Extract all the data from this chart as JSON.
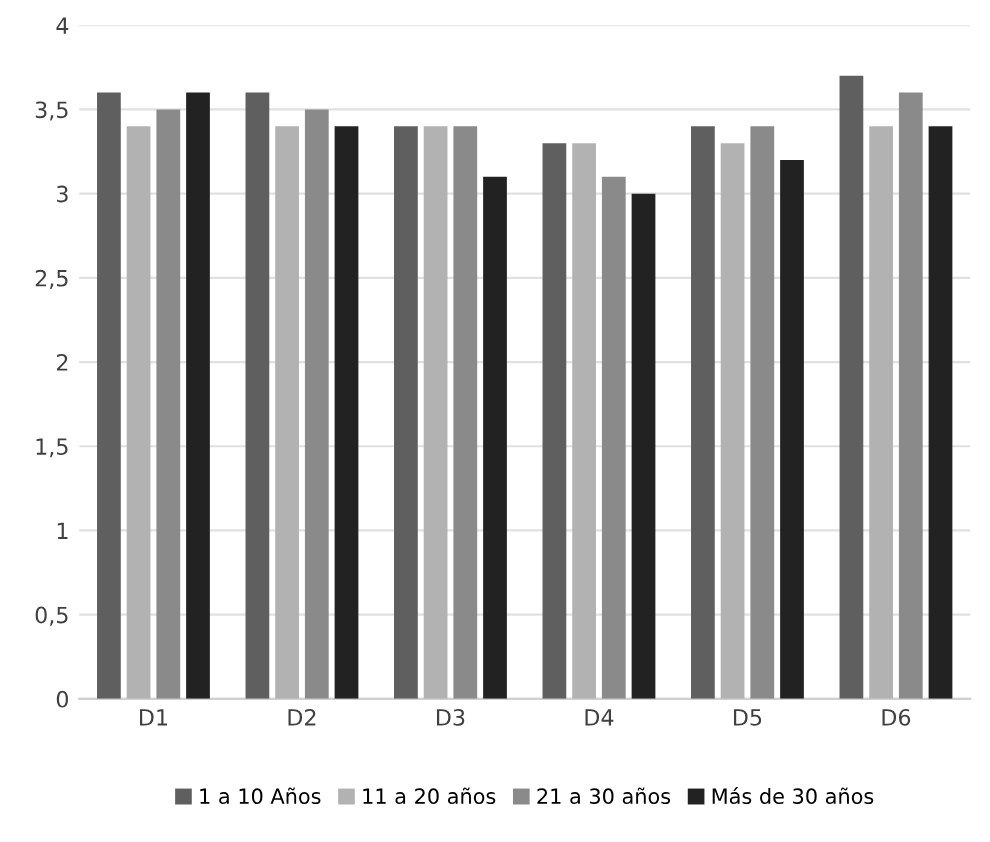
{
  "chart_data": {
    "type": "bar",
    "categories": [
      "D1",
      "D2",
      "D3",
      "D4",
      "D5",
      "D6"
    ],
    "series": [
      {
        "name": "1 a 10 Años",
        "color": "#5f5f5f",
        "values": [
          3.6,
          3.6,
          3.4,
          3.3,
          3.4,
          3.7
        ]
      },
      {
        "name": "11 a 20 años",
        "color": "#b2b2b2",
        "values": [
          3.4,
          3.4,
          3.4,
          3.3,
          3.3,
          3.4
        ]
      },
      {
        "name": "21 a 30 años",
        "color": "#8a8a8a",
        "values": [
          3.5,
          3.5,
          3.4,
          3.1,
          3.4,
          3.6
        ]
      },
      {
        "name": "Más de 30 años",
        "color": "#222222",
        "values": [
          3.6,
          3.4,
          3.1,
          3.0,
          3.2,
          3.4
        ]
      }
    ],
    "ylim": [
      0,
      4
    ],
    "yticks": [
      0,
      {
        "value": 0.5,
        "label": "0,5"
      },
      1,
      {
        "value": 1.5,
        "label": "1,5"
      },
      2,
      {
        "value": 2.5,
        "label": "2,5"
      },
      3,
      {
        "value": 3.5,
        "label": "3,5"
      },
      4
    ],
    "grid": "y",
    "legend": "bottom"
  }
}
